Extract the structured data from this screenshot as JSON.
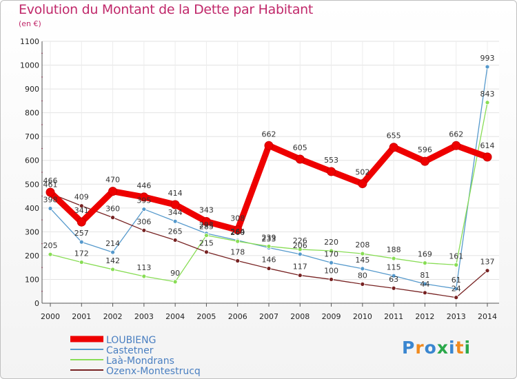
{
  "chart_data": {
    "type": "line",
    "title": "Evolution du Montant de la Dette par Habitant",
    "subtitle": "(en €)",
    "xlabel": "",
    "ylabel": "",
    "ylim": [
      0,
      1100
    ],
    "yticks": [
      "0",
      "100",
      "200",
      "300",
      "400",
      "500",
      "600",
      "700",
      "800",
      "900",
      "1000",
      "1100"
    ],
    "categories": [
      "2000",
      "2001",
      "2002",
      "2003",
      "2004",
      "2005",
      "2006",
      "2007",
      "2008",
      "2009",
      "2010",
      "2011",
      "2012",
      "2013",
      "2014"
    ],
    "series": [
      {
        "name": "LOUBIENG",
        "color": "#ee0000",
        "values": [
          466,
          341,
          470,
          446,
          414,
          343,
          308,
          662,
          605,
          553,
          502,
          655,
          596,
          662,
          614
        ],
        "labels": [
          "466",
          "341",
          "470",
          "446",
          "414",
          "343",
          "308",
          "662",
          "605",
          "553",
          "502",
          "655",
          "596",
          "662",
          "614"
        ]
      },
      {
        "name": "Castetner",
        "color": "#5599cc",
        "values": [
          398,
          257,
          214,
          395,
          344,
          293,
          264,
          233,
          206,
          170,
          145,
          115,
          81,
          61,
          993
        ],
        "labels": [
          "398",
          "257",
          "214",
          "395",
          "344",
          "293",
          "264",
          "233",
          "206",
          "170",
          "145",
          "115",
          "81",
          "61",
          "993"
        ]
      },
      {
        "name": "Laà-Mondrans",
        "color": "#88dd55",
        "values": [
          205,
          172,
          142,
          113,
          90,
          285,
          260,
          239,
          226,
          220,
          208,
          188,
          169,
          161,
          843
        ],
        "labels": [
          "205",
          "172",
          "142",
          "113",
          "90",
          "285",
          "260",
          "239",
          "226",
          "220",
          "208",
          "188",
          "169",
          "161",
          "843"
        ]
      },
      {
        "name": "Ozenx-Montestrucq",
        "color": "#772222",
        "values": [
          461,
          409,
          360,
          306,
          265,
          215,
          178,
          146,
          117,
          100,
          80,
          63,
          44,
          24,
          137
        ],
        "labels": [
          "461",
          "409",
          "360",
          "306",
          "265",
          "215",
          "178",
          "146",
          "117",
          "100",
          "80",
          "63",
          "44",
          "24",
          "137"
        ]
      }
    ]
  },
  "logo": {
    "text": [
      "P",
      "r",
      "o",
      "x",
      "i",
      "t",
      "i"
    ],
    "colors": [
      "#3a86d0",
      "#f08a1e",
      "#3a86d0",
      "#2aa84a",
      "#3a86d0",
      "#f08a1e",
      "#2aa84a"
    ]
  }
}
